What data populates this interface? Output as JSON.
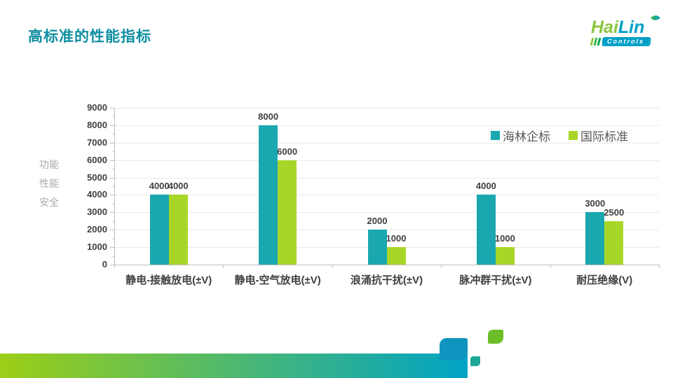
{
  "slide": {
    "title": "高标准的性能指标"
  },
  "logo": {
    "word_part1": "Hai",
    "word_part2": "Lin",
    "tagline": "Controls"
  },
  "colors": {
    "brand_teal": "#0E8FA1",
    "series_teal": "#1AA7B0",
    "series_green": "#A8D628",
    "band_left": "#9CCE17",
    "band_right": "#00A3C6",
    "bump_teal": "#0E94BE",
    "square_teal_green": "#1FA795",
    "square_green": "#6CBE28",
    "logo_green": "#8CC63F",
    "logo_mid_green": "#39B54A",
    "logo_dark_green": "#00A651",
    "logo_teal": "#00A0C6"
  },
  "chart_data": {
    "type": "bar",
    "title": "",
    "categories": [
      "静电-接触放电(±V)",
      "静电-空气放电(±V)",
      "浪涌抗干扰(±V)",
      "脉冲群干扰(±V)",
      "耐压绝缘(V)"
    ],
    "series": [
      {
        "name": "海林企标",
        "color": "#1AA7B0",
        "values": [
          4000,
          8000,
          2000,
          4000,
          3000
        ]
      },
      {
        "name": "国际标准",
        "color": "#A8D628",
        "values": [
          4000,
          6000,
          1000,
          1000,
          2500
        ]
      }
    ],
    "ylabel": "功能 性能 安全",
    "ylabel_lines": [
      "功能",
      "性能",
      "安全"
    ],
    "ylim": [
      0,
      9000
    ],
    "ytick_step": 1000,
    "grid": true,
    "data_labels": true,
    "legend_position": "top-right"
  }
}
